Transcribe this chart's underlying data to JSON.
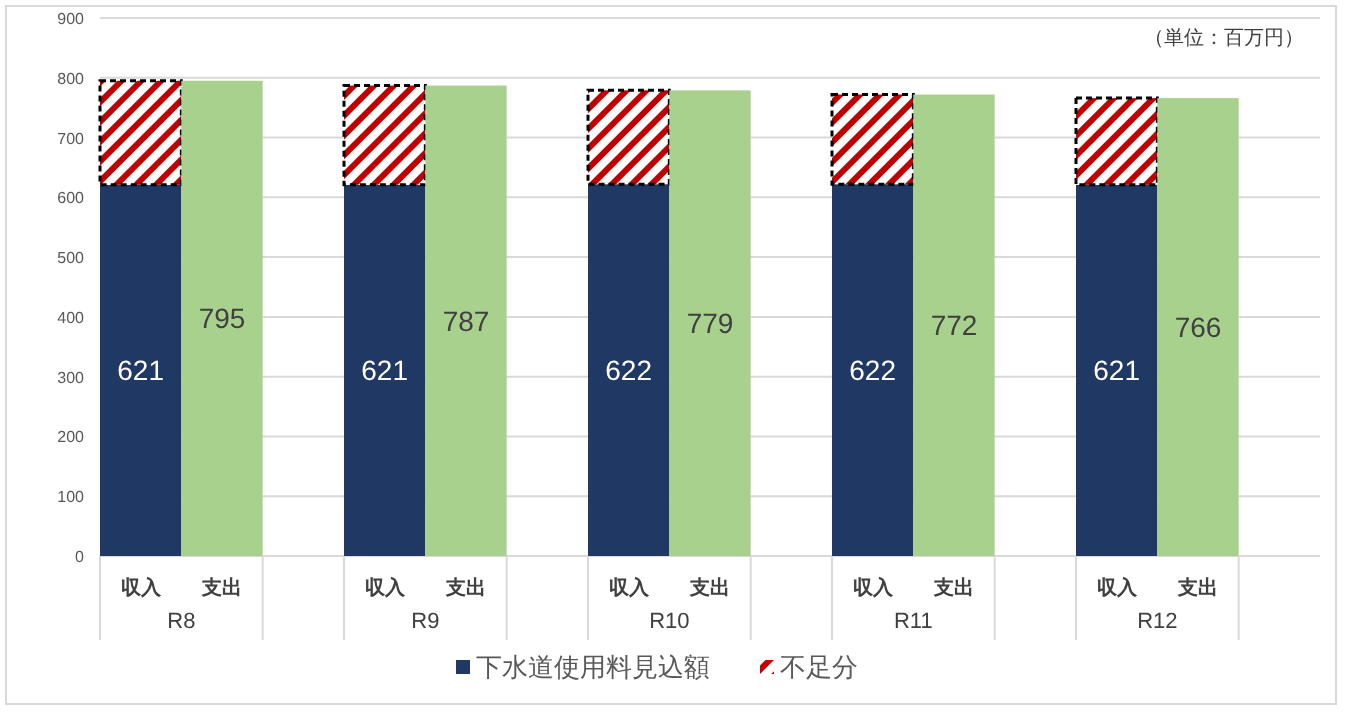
{
  "chart_data": {
    "type": "bar",
    "stacked": true,
    "categories": [
      "収入",
      "支出",
      "収入",
      "支出",
      "収入",
      "支出",
      "収入",
      "支出",
      "収入",
      "支出"
    ],
    "series": [
      {
        "name": "下水道使用料見込額",
        "color": "#203864",
        "values": [
          621,
          null,
          621,
          null,
          622,
          null,
          622,
          null,
          621,
          null
        ],
        "value_labels": [
          "621",
          null,
          "621",
          null,
          "622",
          null,
          "622",
          null,
          "621",
          null
        ]
      },
      {
        "name": "不足分",
        "color": "#c00000",
        "values": [
          174,
          null,
          166,
          null,
          157,
          null,
          150,
          null,
          145,
          null
        ]
      },
      {
        "color": "#a9d18e",
        "values": [
          null,
          795,
          null,
          787,
          null,
          779,
          null,
          772,
          null,
          766
        ],
        "value_labels": [
          null,
          "795",
          null,
          "787",
          null,
          "779",
          null,
          "772",
          null,
          "766"
        ]
      }
    ],
    "ylim": [
      0,
      900
    ],
    "yticks": [
      0,
      100,
      200,
      300,
      400,
      500,
      600,
      700,
      800,
      900
    ],
    "grid": "y",
    "legend": "bottom",
    "annotations": [
      "（単位：百万円）",
      "R8",
      "R9",
      "R10",
      "R11",
      "R12"
    ]
  }
}
